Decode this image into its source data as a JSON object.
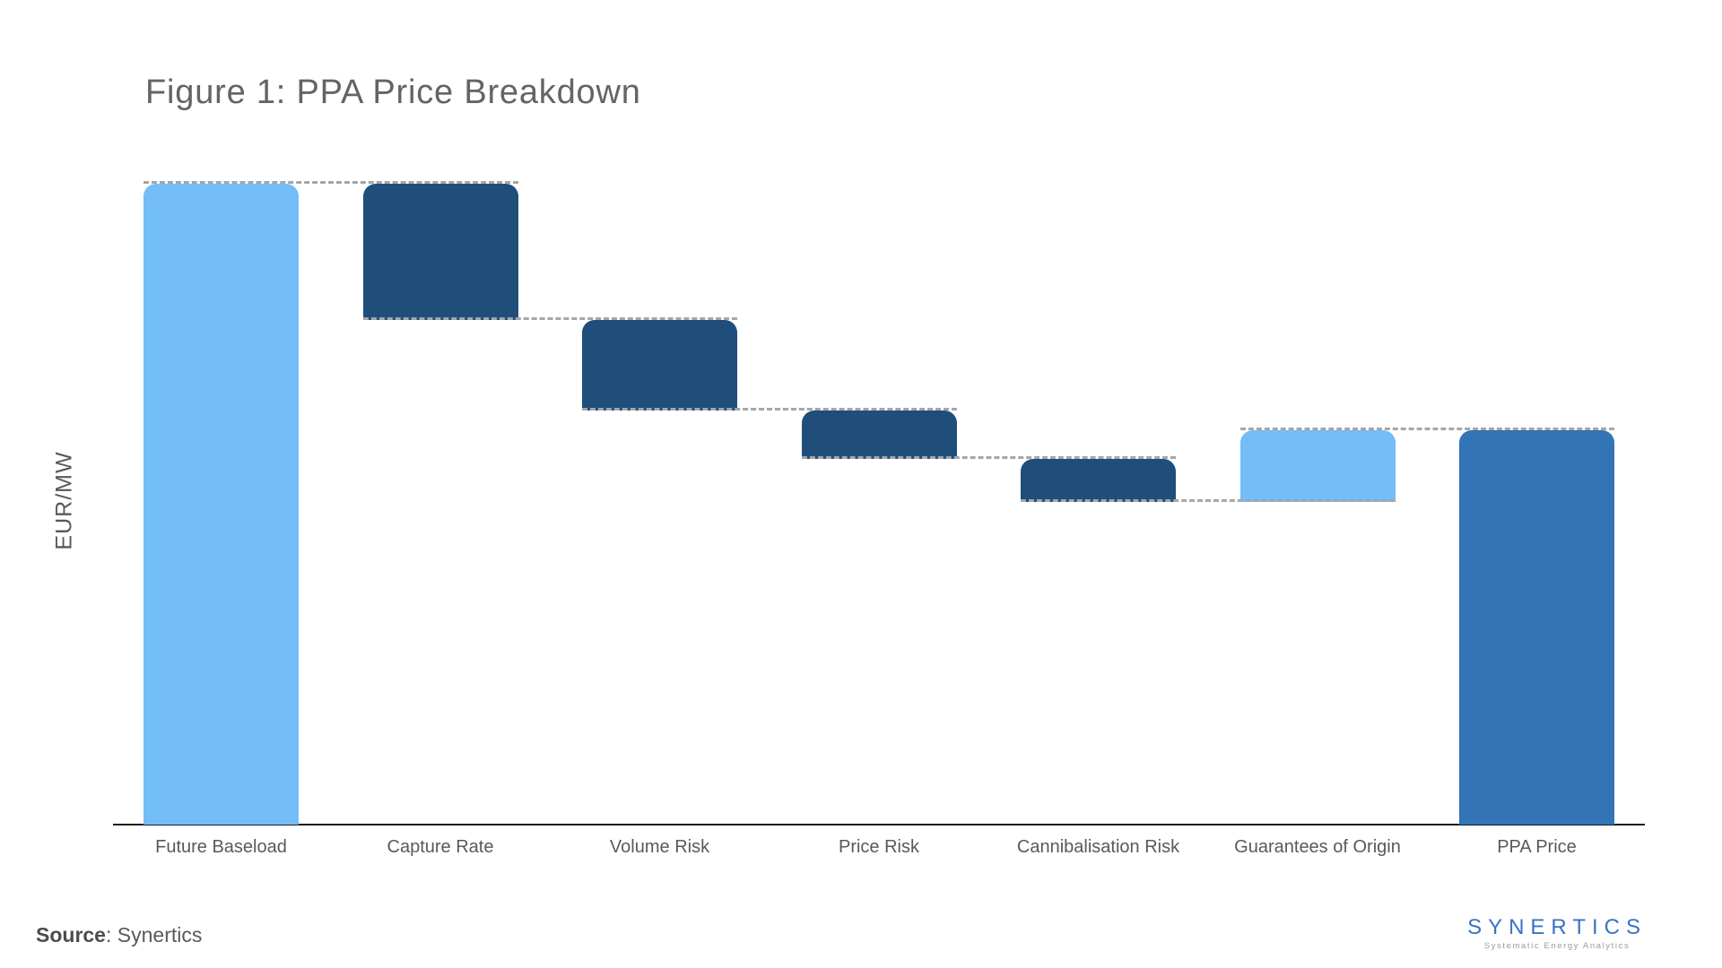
{
  "page": {
    "title": "Figure 1: PPA Price Breakdown",
    "source_label": "Source",
    "source_value": ": Synertics",
    "logo": {
      "wordmark": "SYNERTICS",
      "tagline": "Systematic Energy Analytics"
    }
  },
  "chart_data": {
    "type": "bar",
    "subtype": "waterfall",
    "title": "Figure 1: PPA Price Breakdown",
    "xlabel": "",
    "ylabel": "EUR/MW",
    "categories": [
      "Future Baseload",
      "Capture Rate",
      "Volume Risk",
      "Price Risk",
      "Cannibalisation Risk",
      "Guarantees of Origin",
      "PPA Price"
    ],
    "items": [
      {
        "label": "Future Baseload",
        "role": "start",
        "value": 100
      },
      {
        "label": "Capture Rate",
        "role": "decrease",
        "value": -21.3
      },
      {
        "label": "Volume Risk",
        "role": "decrease",
        "value": -14.1
      },
      {
        "label": "Price Risk",
        "role": "decrease",
        "value": -7.6
      },
      {
        "label": "Cannibalisation Risk",
        "role": "decrease",
        "value": -6.7
      },
      {
        "label": "Guarantees of Origin",
        "role": "increase",
        "value": 11.2
      },
      {
        "label": "PPA Price",
        "role": "total",
        "value": 61.5
      }
    ],
    "value_note": "Axis shows no numeric ticks; values estimated from bar heights, normalized so Future Baseload = 100.",
    "ylim": [
      0,
      105
    ],
    "grid": false,
    "legend": false,
    "connector_lines": "dashed gray between consecutive bars at running level",
    "colors": {
      "start": "#73BDF8",
      "increase": "#73BDF8",
      "decrease": "#1F4E7B",
      "total": "#3274B5",
      "connector": "#A6A6A6",
      "axis": "#1A1A1A",
      "text": "#595959",
      "logo_blue": "#3A72C5"
    }
  }
}
